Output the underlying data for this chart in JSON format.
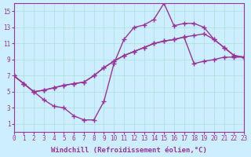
{
  "bg_color": "#cceeff",
  "line_color": "#993399",
  "grid_color": "#aadddd",
  "xlabel": "Windchill (Refroidissement éolien,°C)",
  "xlim": [
    0,
    23
  ],
  "ylim": [
    0,
    16
  ],
  "xticks": [
    0,
    1,
    2,
    3,
    4,
    5,
    6,
    7,
    8,
    9,
    10,
    11,
    12,
    13,
    14,
    15,
    16,
    17,
    18,
    19,
    20,
    21,
    22,
    23
  ],
  "yticks": [
    1,
    3,
    5,
    7,
    9,
    11,
    13,
    15
  ],
  "line1_x": [
    0,
    1,
    2,
    3,
    4,
    5,
    6,
    7,
    8,
    9,
    10,
    11,
    12,
    13,
    14,
    15,
    16,
    17,
    18,
    19,
    20,
    21,
    22,
    23
  ],
  "line1_y": [
    7.0,
    6.0,
    5.0,
    4.0,
    3.2,
    3.0,
    2.0,
    1.5,
    1.5,
    3.8,
    8.5,
    11.5,
    13.0,
    13.3,
    14.0,
    16.0,
    13.2,
    13.5,
    13.5,
    13.0,
    11.5,
    10.5,
    9.5,
    9.3
  ],
  "line2_x": [
    0,
    1,
    2,
    3,
    4,
    5,
    6,
    7,
    8,
    9,
    10,
    11,
    12,
    13,
    14,
    15,
    16,
    17,
    18,
    19,
    20,
    21,
    22,
    23
  ],
  "line2_y": [
    7.0,
    6.0,
    5.0,
    5.2,
    5.5,
    5.8,
    6.0,
    6.2,
    7.0,
    8.0,
    8.8,
    9.5,
    10.0,
    10.5,
    11.0,
    11.3,
    11.5,
    11.8,
    12.0,
    12.2,
    11.5,
    10.5,
    9.5,
    9.3
  ],
  "line3_x": [
    0,
    1,
    2,
    3,
    4,
    5,
    6,
    7,
    8,
    9,
    10,
    11,
    12,
    13,
    14,
    15,
    16,
    17,
    18,
    19,
    20,
    21,
    22,
    23
  ],
  "line3_y": [
    7.0,
    6.0,
    5.0,
    5.2,
    5.5,
    5.8,
    6.0,
    6.2,
    7.0,
    8.0,
    8.8,
    9.5,
    10.0,
    10.5,
    11.0,
    11.3,
    11.5,
    11.8,
    8.5,
    8.8,
    9.0,
    9.3,
    9.3,
    9.3
  ],
  "marker": "+",
  "markersize": 4,
  "linewidth": 1.0,
  "tick_fontsize": 5.5,
  "xlabel_fontsize": 6.5
}
